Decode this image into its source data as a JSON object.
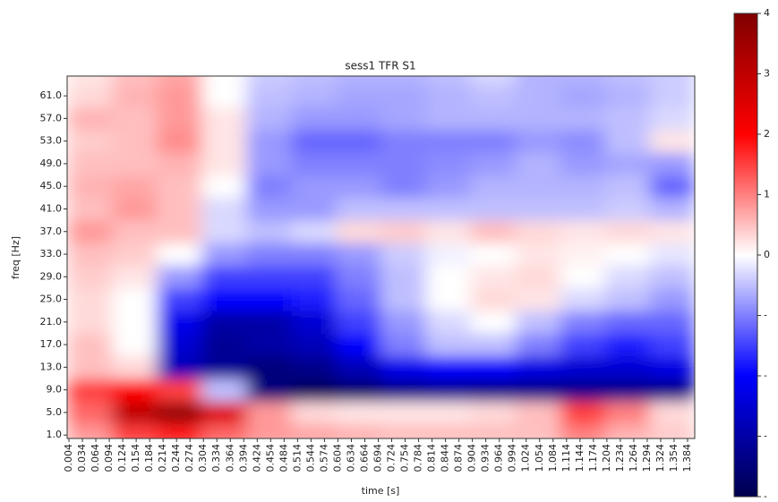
{
  "chart_data": {
    "type": "heatmap",
    "title": "sess1 TFR S1",
    "x_label": "time [s]",
    "y_label": "freq [Hz]",
    "colormap": "seismic",
    "x": [
      0.05,
      0.15,
      0.25,
      0.35,
      0.45,
      0.55,
      0.65,
      0.75,
      0.85,
      0.95,
      1.05,
      1.15,
      1.25,
      1.35
    ],
    "y": [
      1,
      5,
      9,
      13,
      17,
      21,
      25,
      29,
      33,
      37,
      41,
      45,
      49,
      53,
      57,
      61,
      65
    ],
    "z": [
      [
        0.8,
        1.5,
        1.8,
        1.2,
        0.8,
        0.7,
        0.6,
        0.5,
        0.5,
        0.5,
        0.5,
        1.0,
        0.6,
        0.4
      ],
      [
        1.2,
        3.0,
        3.6,
        2.5,
        0.8,
        0.3,
        0.2,
        0.2,
        0.2,
        0.3,
        0.5,
        1.5,
        1.0,
        0.3
      ],
      [
        1.5,
        2.0,
        1.5,
        -0.5,
        -3.5,
        -3.8,
        -3.6,
        -3.3,
        -3.2,
        -3.3,
        -3.3,
        -3.3,
        -3.3,
        -3.3
      ],
      [
        0.5,
        0.3,
        -2.8,
        -3.2,
        -3.5,
        -3.3,
        -2.8,
        -2.2,
        -2.0,
        -2.0,
        -2.3,
        -2.5,
        -2.5,
        -2.3
      ],
      [
        0.5,
        0,
        -2.5,
        -3.2,
        -3.0,
        -2.8,
        -2.0,
        -1.0,
        -0.5,
        -0.5,
        -1.0,
        -1.5,
        -1.8,
        -1.5
      ],
      [
        0.3,
        0,
        -2.2,
        -3.0,
        -3.0,
        -2.5,
        -1.5,
        -0.8,
        -0.3,
        0,
        -0.5,
        -1.0,
        -1.2,
        -1.2
      ],
      [
        0.3,
        0,
        -1.5,
        -2.0,
        -2.0,
        -1.8,
        -1.2,
        -0.5,
        0,
        0.3,
        0.2,
        -0.3,
        -0.5,
        -0.8
      ],
      [
        0.4,
        0.2,
        -0.8,
        -1.5,
        -1.5,
        -1.5,
        -1.0,
        -0.5,
        0,
        0.2,
        0.3,
        0,
        -0.3,
        -0.5
      ],
      [
        0.5,
        0.4,
        0,
        -0.8,
        -1.0,
        -1.0,
        -0.8,
        -0.4,
        -0.1,
        0,
        0.2,
        0.1,
        0,
        -0.2
      ],
      [
        0.8,
        0.5,
        0.5,
        -0.3,
        -0.5,
        -0.3,
        0.3,
        0.4,
        0.2,
        0.5,
        0.3,
        0.2,
        0.3,
        0.2
      ],
      [
        0.5,
        0.8,
        0.5,
        -0.3,
        -0.8,
        -0.8,
        -0.5,
        -0.5,
        -0.5,
        -0.5,
        -0.5,
        -0.5,
        -0.4,
        -0.6
      ],
      [
        0.6,
        0.7,
        0.5,
        0,
        -1.0,
        -0.8,
        -0.8,
        -1.0,
        -0.8,
        -0.6,
        -0.6,
        -0.6,
        -0.5,
        -1.2
      ],
      [
        0.5,
        0.5,
        0.6,
        0.2,
        -0.8,
        -1.0,
        -1.0,
        -1.0,
        -0.9,
        -0.8,
        -0.6,
        -0.8,
        -0.7,
        -0.8
      ],
      [
        0.4,
        0.5,
        0.9,
        0.2,
        -0.8,
        -1.2,
        -1.2,
        -1.0,
        -1.0,
        -1.0,
        -0.8,
        -0.9,
        -0.5,
        0.2
      ],
      [
        0.6,
        0.5,
        0.8,
        0.2,
        -0.6,
        -0.8,
        -0.8,
        -0.7,
        -0.6,
        -0.6,
        -0.6,
        -0.6,
        -0.5,
        -0.3
      ],
      [
        0.3,
        0.6,
        0.8,
        0,
        -0.5,
        -0.6,
        -0.7,
        -0.7,
        -0.6,
        -0.5,
        -0.6,
        -0.7,
        -0.6,
        -0.4
      ],
      [
        0.2,
        0.5,
        0.7,
        0,
        -0.4,
        -0.5,
        -0.6,
        -0.6,
        -0.5,
        -0.3,
        -0.6,
        -0.6,
        -0.5,
        -0.4
      ]
    ],
    "xlim": [
      0,
      1.4
    ],
    "ylim": [
      0.4,
      64.5
    ],
    "xticks": [
      0.004,
      0.034,
      0.064,
      0.094,
      0.124,
      0.154,
      0.184,
      0.214,
      0.244,
      0.274,
      0.304,
      0.334,
      0.364,
      0.394,
      0.424,
      0.454,
      0.484,
      0.514,
      0.544,
      0.574,
      0.604,
      0.634,
      0.664,
      0.694,
      0.724,
      0.754,
      0.784,
      0.814,
      0.844,
      0.874,
      0.904,
      0.934,
      0.964,
      0.994,
      1.024,
      1.054,
      1.084,
      1.114,
      1.144,
      1.174,
      1.204,
      1.234,
      1.264,
      1.294,
      1.324,
      1.354,
      1.384
    ],
    "yticks": [
      {
        "value": 1,
        "label": "1.0"
      },
      {
        "value": 5,
        "label": "5.0"
      },
      {
        "value": 9,
        "label": "9.0"
      },
      {
        "value": 13,
        "label": "13.0"
      },
      {
        "value": 17,
        "label": "17.0"
      },
      {
        "value": 21,
        "label": "21.0"
      },
      {
        "value": 25,
        "label": "25.0"
      },
      {
        "value": 29,
        "label": "29.0"
      },
      {
        "value": 33,
        "label": "33.0"
      },
      {
        "value": 37,
        "label": "37.0"
      },
      {
        "value": 41,
        "label": "41.0"
      },
      {
        "value": 45,
        "label": "45.0"
      },
      {
        "value": 49,
        "label": "49.0"
      },
      {
        "value": 53,
        "label": "53.0"
      },
      {
        "value": 57,
        "label": "57.0"
      },
      {
        "value": 61,
        "label": "61.0"
      }
    ],
    "clim": [
      -4,
      4
    ],
    "cticks": [
      4,
      3,
      2,
      1,
      0,
      {
        "value": -1,
        "label": "-"
      },
      {
        "value": -2,
        "label": "-"
      },
      {
        "value": -3,
        "label": "-"
      },
      {
        "value": -4,
        "label": "-"
      }
    ]
  }
}
